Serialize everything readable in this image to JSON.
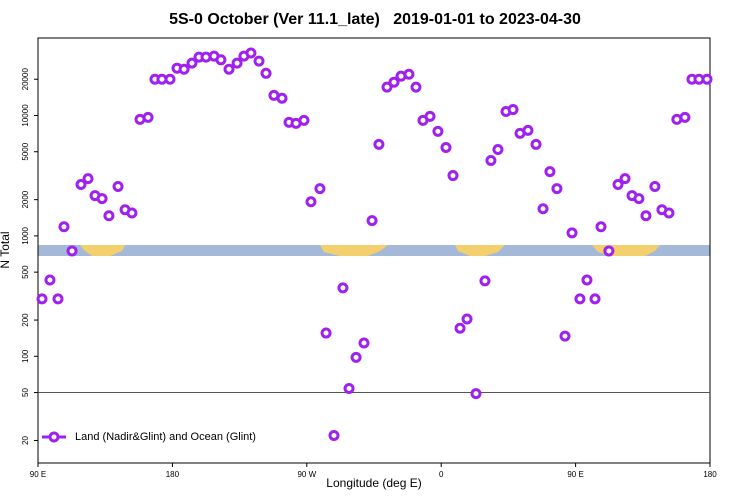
{
  "chart_data": {
    "type": "scatter",
    "title": "5S-0 October (Ver 11.1_late)   2019-01-01 to 2023-04-30",
    "x_label": "Longitude (deg E)",
    "y_label": "N Total",
    "log_y": true,
    "xlim": [
      90,
      540
    ],
    "ylim": [
      13,
      44000
    ],
    "xticks": [
      {
        "value": 90,
        "label": "90 E"
      },
      {
        "value": 180,
        "label": "180"
      },
      {
        "value": 270,
        "label": "90 W"
      },
      {
        "value": 360,
        "label": "0"
      },
      {
        "value": 450,
        "label": "90 E"
      },
      {
        "value": 540,
        "label": "180"
      }
    ],
    "yticks": [
      20,
      50,
      100,
      200,
      500,
      1000,
      2000,
      5000,
      10000,
      20000
    ],
    "reference_line": 50,
    "legend": "bottom-left",
    "series": [
      {
        "name": "Land (Nadir&Glint) and Ocean (Glint)",
        "color": "#a020f0",
        "x": [
          92.7,
          98,
          103.4,
          107.4,
          112.8,
          118.8,
          123.5,
          128.2,
          132.9,
          137.5,
          143.6,
          148.3,
          152.9,
          158.3,
          163.7,
          168.3,
          173,
          178.4,
          183.1,
          187.8,
          193.1,
          197.8,
          202.5,
          207.9,
          212.5,
          217.9,
          223.3,
          227.9,
          232.6,
          238,
          242.7,
          248,
          253.4,
          258.1,
          262.8,
          268.1,
          272.8,
          278.8,
          282.9,
          288.2,
          294.2,
          298.3,
          303,
          308.3,
          313.7,
          318.3,
          323.7,
          328.4,
          333.1,
          338.4,
          343.1,
          347.8,
          352.5,
          357.8,
          363.2,
          367.9,
          372.6,
          377.3,
          383.3,
          389.3,
          393.3,
          398,
          403.4,
          408.1,
          412.8,
          418.1,
          423.5,
          428.2,
          432.8,
          437.5,
          442.9,
          447.6,
          452.9,
          457.6,
          463,
          467,
          472.3,
          478.4,
          483.1,
          487.8,
          492.4,
          497.1,
          503.1,
          507.8,
          512.5,
          517.8,
          523.2,
          527.9,
          532.6,
          538
        ],
        "values": [
          300,
          430,
          300,
          1190,
          750,
          2670,
          2990,
          2160,
          2040,
          1470,
          2570,
          1650,
          1550,
          9280,
          9640,
          20000,
          20000,
          20000,
          24700,
          24200,
          27200,
          30500,
          30500,
          31100,
          29000,
          24200,
          27200,
          31100,
          33000,
          28300,
          22400,
          14700,
          13900,
          8770,
          8600,
          9100,
          1920,
          2470,
          156,
          22,
          370,
          54,
          98,
          129,
          1340,
          5750,
          17200,
          18900,
          21200,
          22000,
          17200,
          9100,
          9830,
          7380,
          5420,
          3170,
          171,
          204,
          49,
          423,
          4230,
          5220,
          10800,
          11200,
          7100,
          7520,
          5750,
          1680,
          3420,
          2470,
          147,
          1060,
          300,
          430,
          300,
          1190,
          750,
          2670,
          2990,
          2160,
          2040,
          1470,
          2570,
          1650,
          1550,
          9280,
          9640,
          20000,
          20000,
          20000
        ]
      }
    ]
  }
}
